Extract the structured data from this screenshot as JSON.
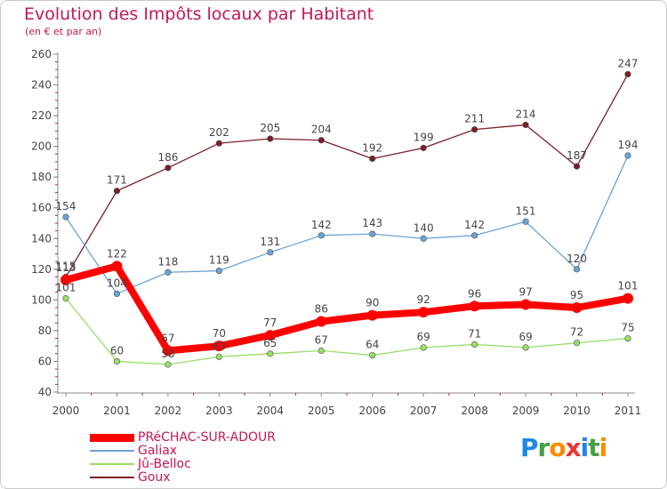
{
  "header": {
    "title": "Evolution des Impôts locaux par Habitant",
    "subtitle": "(en € et par an)"
  },
  "logo": {
    "text": "Proxiti",
    "letters": [
      {
        "ch": "P",
        "color": "#1e88e5"
      },
      {
        "ch": "r",
        "color": "#43a047"
      },
      {
        "ch": "o",
        "color": "#fb8c00"
      },
      {
        "ch": "x",
        "color": "#e53935"
      },
      {
        "ch": "i",
        "color": "#1e88e5"
      },
      {
        "ch": "t",
        "color": "#43a047"
      },
      {
        "ch": "i",
        "color": "#fb8c00"
      }
    ]
  },
  "chart_data": {
    "type": "line",
    "title": "Evolution des Impôts locaux par Habitant",
    "subtitle": "(en € et par an)",
    "xlabel": "",
    "ylabel": "",
    "categories": [
      "2000",
      "2001",
      "2002",
      "2003",
      "2004",
      "2005",
      "2006",
      "2007",
      "2008",
      "2009",
      "2010",
      "2011"
    ],
    "ylim": [
      40,
      260
    ],
    "yticks": [
      40,
      60,
      80,
      100,
      120,
      140,
      160,
      180,
      200,
      220,
      240,
      260
    ],
    "grid": false,
    "legend_position": "bottom-left",
    "series": [
      {
        "name": "PRéCHAC-SUR-ADOUR",
        "color": "#ff0000",
        "width": 8,
        "marker": 12,
        "values": [
          113,
          122,
          67,
          70,
          77,
          86,
          90,
          92,
          96,
          97,
          95,
          101
        ]
      },
      {
        "name": "Galiax",
        "color": "#6aa3d5",
        "width": 1.3,
        "marker": 3.5,
        "values": [
          154,
          104,
          118,
          119,
          131,
          142,
          143,
          140,
          142,
          151,
          120,
          194
        ]
      },
      {
        "name": "Jû-Belloc",
        "color": "#99dd66",
        "width": 1.3,
        "marker": 3.5,
        "values": [
          101,
          60,
          58,
          63,
          65,
          67,
          64,
          69,
          71,
          69,
          72,
          75
        ]
      },
      {
        "name": "Goux",
        "color": "#7b1f25",
        "width": 1.3,
        "marker": 3.5,
        "values": [
          115,
          171,
          186,
          202,
          205,
          204,
          192,
          199,
          211,
          214,
          187,
          247
        ]
      }
    ]
  }
}
